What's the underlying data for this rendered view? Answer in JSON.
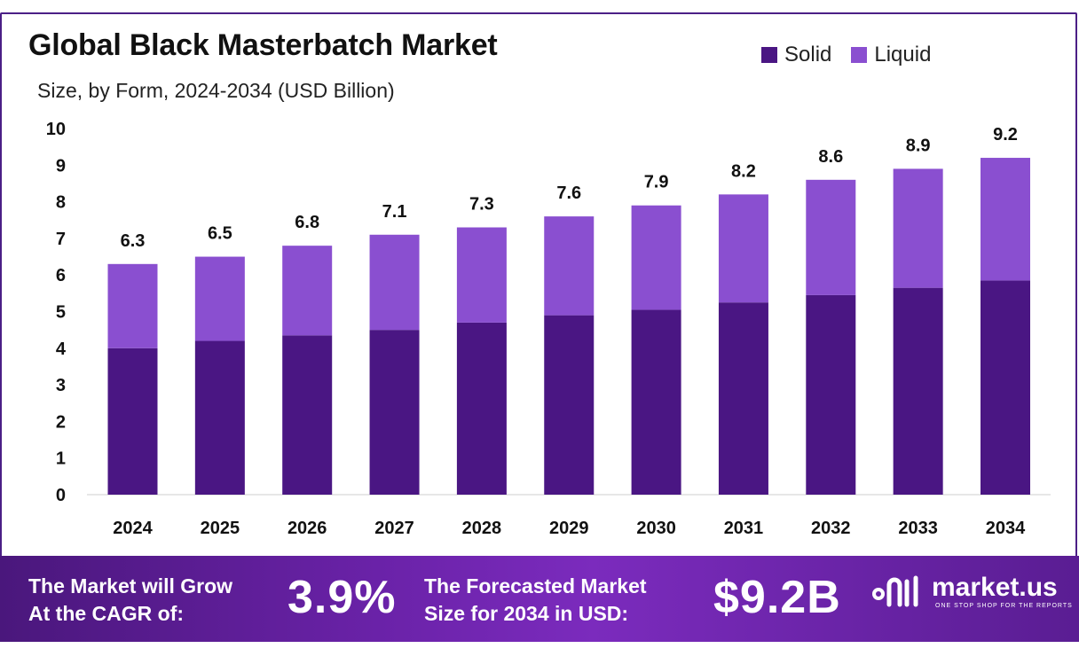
{
  "header": {
    "title": "Global Black Masterbatch Market",
    "subtitle": "Size, by Form, 2024-2034 (USD Billion)"
  },
  "legend": [
    {
      "label": "Solid",
      "color": "#4a1683"
    },
    {
      "label": "Liquid",
      "color": "#8a4fd0"
    }
  ],
  "chart_data": {
    "type": "bar",
    "stacked": true,
    "title": "Global Black Masterbatch Market",
    "subtitle": "Size, by Form, 2024-2034 (USD Billion)",
    "categories": [
      "2024",
      "2025",
      "2026",
      "2027",
      "2028",
      "2029",
      "2030",
      "2031",
      "2032",
      "2033",
      "2034"
    ],
    "series": [
      {
        "name": "Solid",
        "color": "#4a1683",
        "values": [
          4.0,
          4.2,
          4.35,
          4.5,
          4.7,
          4.9,
          5.05,
          5.25,
          5.45,
          5.65,
          5.85
        ]
      },
      {
        "name": "Liquid",
        "color": "#8a4fd0",
        "values": [
          2.3,
          2.3,
          2.45,
          2.6,
          2.6,
          2.7,
          2.85,
          2.95,
          3.15,
          3.25,
          3.35
        ]
      }
    ],
    "totals": [
      "6.3",
      "6.5",
      "6.8",
      "7.1",
      "7.3",
      "7.6",
      "7.9",
      "8.2",
      "8.6",
      "8.9",
      "9.2"
    ],
    "y_ticks": [
      "0",
      "1",
      "2",
      "3",
      "4",
      "5",
      "6",
      "7",
      "8",
      "9",
      "10"
    ],
    "ylim": [
      0,
      10
    ],
    "grid": false,
    "legend_position": "top-right"
  },
  "banner": {
    "cagr_label_line1": "The Market will Grow",
    "cagr_label_line2": "At the CAGR of:",
    "cagr_value": "3.9%",
    "forecast_label_line1": "The Forecasted Market",
    "forecast_label_line2": "Size for 2034 in USD:",
    "forecast_value": "$9.2B",
    "brand_name": "market.us",
    "brand_tagline": "ONE STOP SHOP FOR THE REPORTS"
  }
}
